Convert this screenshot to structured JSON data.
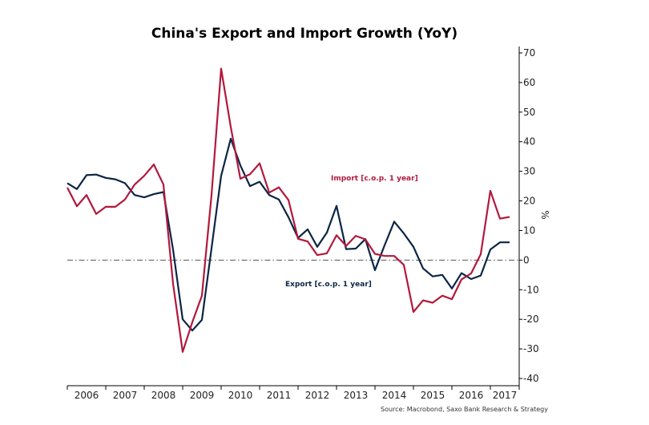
{
  "chart_data": {
    "type": "line",
    "title": "China's Export and Import Growth (YoY)",
    "ylabel": "%",
    "ylim": [
      -40,
      70
    ],
    "yticks": [
      -40,
      -30,
      -20,
      -10,
      0,
      10,
      20,
      30,
      40,
      50,
      60,
      70
    ],
    "year_labels": [
      "2006",
      "2007",
      "2008",
      "2009",
      "2010",
      "2011",
      "2012",
      "2013",
      "2014",
      "2015",
      "2016",
      "2017"
    ],
    "x_start": 2006.0,
    "x_end": 2017.75,
    "zero_line": "dash-dot",
    "source": "Source: Macrobond, Saxo Bank Research & Strategy",
    "series": [
      {
        "name": "Export [c.o.p. 1 year]",
        "color": "#0b2545",
        "x": [
          2006.0,
          2006.25,
          2006.5,
          2006.75,
          2007.0,
          2007.25,
          2007.5,
          2007.75,
          2008.0,
          2008.25,
          2008.5,
          2008.75,
          2009.0,
          2009.25,
          2009.5,
          2009.75,
          2010.0,
          2010.25,
          2010.5,
          2010.75,
          2011.0,
          2011.25,
          2011.5,
          2011.75,
          2012.0,
          2012.25,
          2012.5,
          2012.75,
          2013.0,
          2013.25,
          2013.5,
          2013.75,
          2014.0,
          2014.25,
          2014.5,
          2014.75,
          2015.0,
          2015.25,
          2015.5,
          2015.75,
          2016.0,
          2016.25,
          2016.5,
          2016.75,
          2017.0,
          2017.25,
          2017.5
        ],
        "values": [
          26,
          24,
          28.7,
          28.9,
          27.8,
          27.3,
          26,
          22,
          21.2,
          22.3,
          23,
          3.5,
          -20,
          -23.8,
          -20.2,
          4,
          28.5,
          41,
          32,
          25,
          26.5,
          22,
          20.5,
          14.5,
          7.5,
          10.4,
          4.5,
          9.3,
          18.3,
          3.7,
          3.9,
          7.1,
          -3.4,
          5,
          13,
          9,
          4.5,
          -2.8,
          -5.5,
          -5,
          -9.6,
          -4.4,
          -6.4,
          -5.2,
          3.6,
          6,
          6
        ]
      },
      {
        "name": "Import [c.o.p. 1 year]",
        "color": "#b2183d",
        "x": [
          2006.0,
          2006.25,
          2006.5,
          2006.75,
          2007.0,
          2007.25,
          2007.5,
          2007.75,
          2008.0,
          2008.25,
          2008.5,
          2008.75,
          2009.0,
          2009.25,
          2009.5,
          2009.75,
          2010.0,
          2010.25,
          2010.5,
          2010.75,
          2011.0,
          2011.25,
          2011.5,
          2011.75,
          2012.0,
          2012.25,
          2012.5,
          2012.75,
          2013.0,
          2013.25,
          2013.5,
          2013.75,
          2014.0,
          2014.25,
          2014.5,
          2014.75,
          2015.0,
          2015.25,
          2015.5,
          2015.75,
          2016.0,
          2016.25,
          2016.5,
          2016.75,
          2017.0,
          2017.25,
          2017.5
        ],
        "values": [
          24.5,
          18.2,
          22,
          15.6,
          18,
          18,
          20.5,
          25.5,
          28.5,
          32.3,
          25.5,
          -8,
          -31,
          -21,
          -12,
          22,
          64.7,
          45,
          27.5,
          29,
          32.7,
          22.8,
          24.6,
          20.3,
          7.2,
          6.3,
          1.7,
          2.3,
          8.4,
          4.8,
          8.2,
          7,
          2.1,
          1.4,
          1.4,
          -1.6,
          -17.5,
          -13.6,
          -14.4,
          -12,
          -13.2,
          -6.5,
          -4.5,
          2,
          23.4,
          14,
          14.6
        ]
      }
    ],
    "annotations": [
      {
        "text": "Import [c.o.p. 1 year]",
        "series": 1
      },
      {
        "text": "Export [c.o.p. 1 year]",
        "series": 0
      }
    ]
  }
}
